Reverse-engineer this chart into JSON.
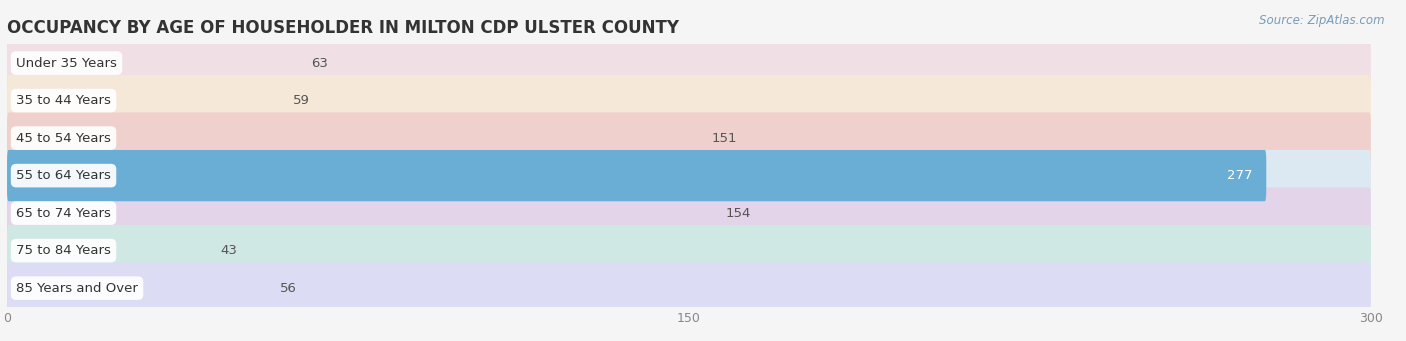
{
  "title": "OCCUPANCY BY AGE OF HOUSEHOLDER IN MILTON CDP ULSTER COUNTY",
  "source": "Source: ZipAtlas.com",
  "categories": [
    "Under 35 Years",
    "35 to 44 Years",
    "45 to 54 Years",
    "55 to 64 Years",
    "65 to 74 Years",
    "75 to 84 Years",
    "85 Years and Over"
  ],
  "values": [
    63,
    59,
    151,
    277,
    154,
    43,
    56
  ],
  "bar_colors": [
    "#f4a0b5",
    "#f9c98a",
    "#e8837a",
    "#6aaed6",
    "#b07fbe",
    "#7ec8c0",
    "#b0b0e0"
  ],
  "bar_bg_colors": [
    "#f0e0e5",
    "#f5e8d8",
    "#f0d0cc",
    "#dce8f2",
    "#e4d4ea",
    "#d0e8e4",
    "#dcdcf4"
  ],
  "row_bg_color": "#ebebeb",
  "xlim": [
    0,
    300
  ],
  "xticks": [
    0,
    150,
    300
  ],
  "background_color": "#f5f5f5",
  "title_fontsize": 12,
  "label_fontsize": 9.5,
  "value_fontsize": 9.5
}
